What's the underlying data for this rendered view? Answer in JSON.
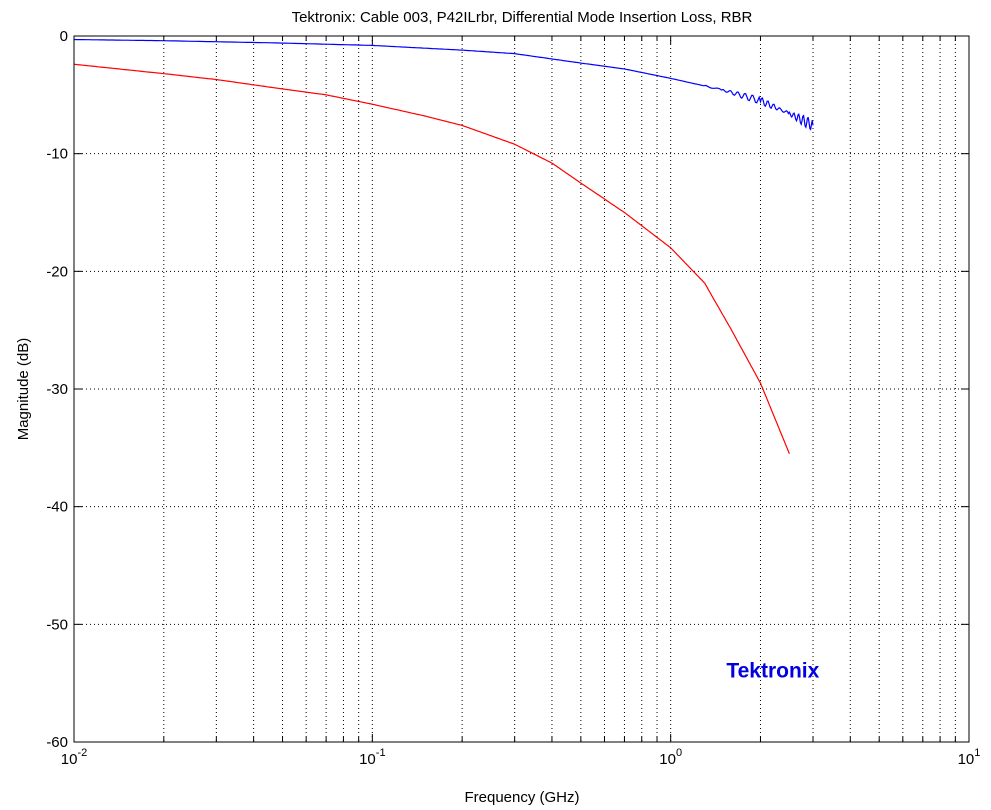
{
  "chart_data": {
    "type": "line",
    "title": "Tektronix: Cable 003, P42ILrbr, Differential Mode Insertion Loss, RBR",
    "xlabel": "Frequency (GHz)",
    "ylabel": "Magnitude (dB)",
    "xscale": "log",
    "xlim": [
      0.01,
      10
    ],
    "ylim": [
      -60,
      0
    ],
    "grid": true,
    "x_tick_labels": [
      {
        "base": "10",
        "exp": "-2"
      },
      {
        "base": "10",
        "exp": "-1"
      },
      {
        "base": "10",
        "exp": "0"
      },
      {
        "base": "10",
        "exp": "1"
      }
    ],
    "y_tick_labels": [
      "0",
      "-10",
      "-20",
      "-30",
      "-40",
      "-50",
      "-60"
    ],
    "y_ticks": [
      0,
      -10,
      -20,
      -30,
      -40,
      -50,
      -60
    ],
    "series": [
      {
        "color": "#0000ff",
        "points": [
          [
            0.01,
            -0.3
          ],
          [
            0.02,
            -0.4
          ],
          [
            0.05,
            -0.6
          ],
          [
            0.1,
            -0.8
          ],
          [
            0.2,
            -1.2
          ],
          [
            0.3,
            -1.5
          ],
          [
            0.5,
            -2.3
          ],
          [
            0.7,
            -2.8
          ],
          [
            1.0,
            -3.6
          ],
          [
            1.5,
            -4.6
          ],
          [
            2.0,
            -5.5
          ],
          [
            2.5,
            -6.6
          ],
          [
            3.0,
            -7.6
          ]
        ],
        "noisy_tail": true
      },
      {
        "color": "#ff0000",
        "points": [
          [
            0.01,
            -2.4
          ],
          [
            0.02,
            -3.2
          ],
          [
            0.03,
            -3.7
          ],
          [
            0.05,
            -4.5
          ],
          [
            0.07,
            -5.0
          ],
          [
            0.1,
            -5.8
          ],
          [
            0.15,
            -6.8
          ],
          [
            0.2,
            -7.6
          ],
          [
            0.3,
            -9.2
          ],
          [
            0.4,
            -10.8
          ],
          [
            0.5,
            -12.5
          ],
          [
            0.7,
            -15.0
          ],
          [
            1.0,
            -18.0
          ],
          [
            1.3,
            -21.0
          ],
          [
            1.6,
            -25.0
          ],
          [
            2.0,
            -29.5
          ],
          [
            2.5,
            -35.5
          ]
        ]
      }
    ],
    "annotations": [
      {
        "text": "Tektronix",
        "x": 2.2,
        "y": -54.5,
        "color": "#0000e0"
      }
    ]
  }
}
